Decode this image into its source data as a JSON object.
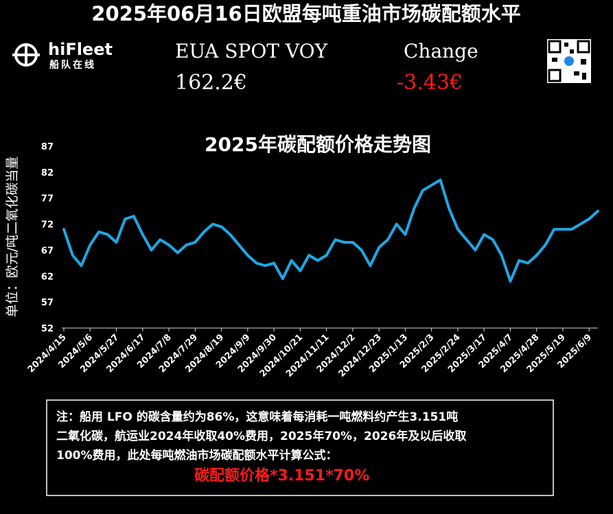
{
  "header": {
    "title": "2025年06月16日欧盟每吨重油市场碳配额水平",
    "logo_name": "hiFleet",
    "logo_sub": "船队在线",
    "quote_label": "EUA SPOT VOY",
    "quote_value": "162.2€",
    "change_label": "Change",
    "change_value": "-3.43€"
  },
  "chart_data": {
    "type": "line",
    "title": "2025年碳配额价格走势图",
    "y_label": "单位：欧元/吨二氧化碳当量",
    "categories": [
      "2024/4/15",
      null,
      null,
      "2024/5/6",
      null,
      null,
      "2024/5/27",
      null,
      null,
      "2024/6/17",
      null,
      null,
      "2024/7/8",
      null,
      null,
      "2024/7/29",
      null,
      null,
      "2024/8/19",
      null,
      null,
      "2024/9/9",
      null,
      null,
      "2024/9/30",
      null,
      null,
      "2024/10/21",
      null,
      null,
      "2024/11/11",
      null,
      null,
      "2024/12/2",
      null,
      null,
      "2024/12/23",
      null,
      null,
      "2025/1/13",
      null,
      null,
      "2025/2/3",
      null,
      null,
      "2025/2/24",
      null,
      null,
      "2025/3/17",
      null,
      null,
      "2025/4/7",
      null,
      null,
      "2025/4/28",
      null,
      null,
      "2025/5/19",
      null,
      null,
      "2025/6/9",
      null
    ],
    "values": [
      71,
      66,
      64,
      68,
      70.5,
      70,
      68.5,
      73,
      73.5,
      70,
      67,
      69,
      68,
      66.5,
      68,
      68.5,
      70.5,
      72,
      71.5,
      70,
      68,
      66,
      64.5,
      64,
      64.5,
      61.5,
      65,
      63,
      66,
      65,
      66,
      69,
      68.5,
      68.5,
      67,
      64,
      67.5,
      69,
      72,
      70,
      75,
      78.5,
      79.5,
      80.5,
      75,
      71,
      69,
      67,
      70,
      69,
      66,
      61,
      65,
      64.5,
      66,
      68,
      71,
      71,
      71,
      72,
      73,
      74.5
    ],
    "color": "#1ea7e4",
    "ylim": [
      52,
      87
    ],
    "yticks": [
      52,
      57,
      62,
      67,
      72,
      77,
      82,
      87
    ]
  },
  "note": {
    "lines": [
      "注：船用 LFO 的碳含量约为86%，这意味着每消耗一吨燃料约产生3.151吨",
      "二氧化碳，航运业2024年收取40%费用，2025年70%，2026年及以后收取",
      "100%费用，此处每吨燃油市场碳配额水平计算公式："
    ],
    "formula": "碳配额价格*3.151*70%"
  }
}
